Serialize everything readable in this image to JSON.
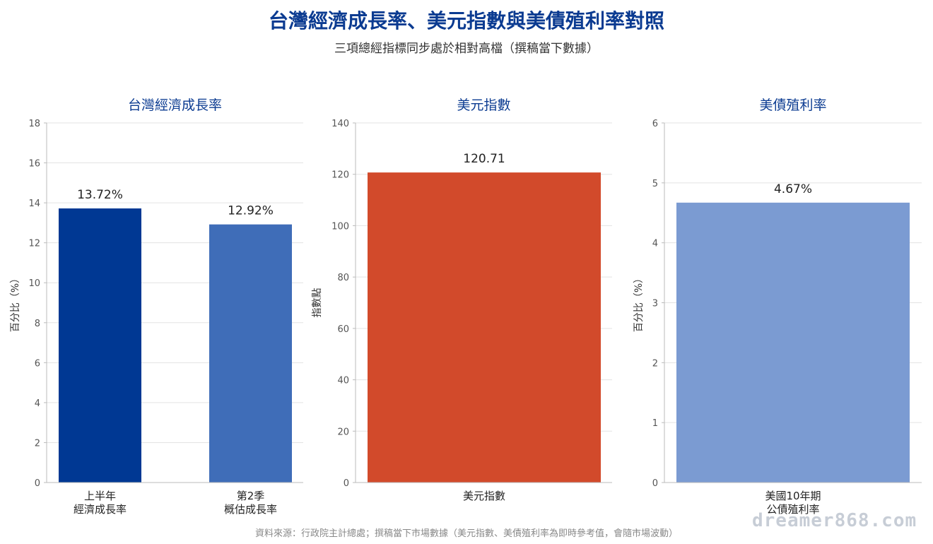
{
  "header": {
    "title": "台灣經濟成長率、美元指數與美債殖利率對照",
    "subtitle": "三項總經指標同步處於相對高檔（撰稿當下數據）"
  },
  "footer": {
    "source": "資料來源：行政院主計總處；撰稿當下市場數據（美元指數、美債殖利率為即時參考值，會隨市場波動）",
    "watermark": "dreamer868.com"
  },
  "chart_data": [
    {
      "type": "bar",
      "title": "台灣經濟成長率",
      "ylabel": "百分比（%）",
      "ylim": [
        0,
        18
      ],
      "yticks": [
        0,
        2,
        4,
        6,
        8,
        10,
        12,
        14,
        16,
        18
      ],
      "categories": [
        [
          "上半年",
          "經濟成長率"
        ],
        [
          "第2季",
          "概估成長率"
        ]
      ],
      "values": [
        13.72,
        12.92
      ],
      "labels": [
        "13.72%",
        "12.92%"
      ],
      "colors": [
        "#003893",
        "#3f6db8"
      ],
      "grid": true
    },
    {
      "type": "bar",
      "title": "美元指數",
      "ylabel": "指數點",
      "ylim": [
        0,
        140
      ],
      "yticks": [
        0,
        20,
        40,
        60,
        80,
        100,
        120,
        140
      ],
      "categories": [
        [
          "美元指數"
        ]
      ],
      "values": [
        120.71
      ],
      "labels": [
        "120.71"
      ],
      "colors": [
        "#d24a2b"
      ],
      "grid": true
    },
    {
      "type": "bar",
      "title": "美債殖利率",
      "ylabel": "百分比（%）",
      "ylim": [
        0,
        6
      ],
      "yticks": [
        0,
        1,
        2,
        3,
        4,
        5,
        6
      ],
      "categories": [
        [
          "美國10年期",
          "公債殖利率"
        ]
      ],
      "values": [
        4.67
      ],
      "labels": [
        "4.67%"
      ],
      "colors": [
        "#7b9bd2"
      ],
      "grid": true
    }
  ]
}
